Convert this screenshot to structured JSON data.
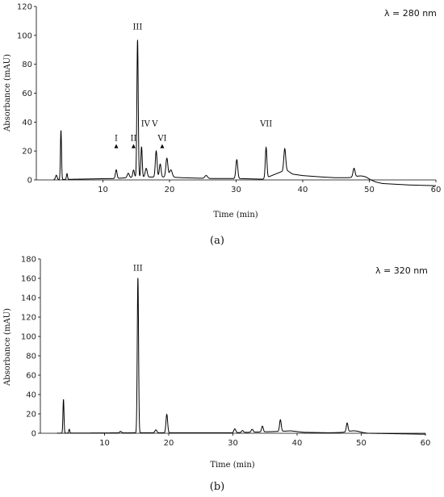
{
  "chart_data": [
    {
      "type": "line",
      "panel": "a",
      "caption": "(a)",
      "wavelength_label": "λ = 280 nm",
      "xlabel": "Time (min)",
      "ylabel": "Absorbance (mAU)",
      "xlim": [
        0,
        60
      ],
      "ylim": [
        0,
        120
      ],
      "xticks": [
        10,
        20,
        30,
        40,
        50,
        60
      ],
      "yticks": [
        0,
        20,
        40,
        60,
        80,
        100,
        120
      ],
      "grid": false,
      "peaks": [
        {
          "t": 3.0,
          "h": 3,
          "w": 0.12
        },
        {
          "t": 3.7,
          "h": 34,
          "w": 0.08
        },
        {
          "t": 4.6,
          "h": 4,
          "w": 0.08
        },
        {
          "t": 12.0,
          "h": 6,
          "w": 0.12
        },
        {
          "t": 13.8,
          "h": 3,
          "w": 0.15
        },
        {
          "t": 14.6,
          "h": 5,
          "w": 0.12
        },
        {
          "t": 15.2,
          "h": 95,
          "w": 0.1
        },
        {
          "t": 15.8,
          "h": 21,
          "w": 0.1
        },
        {
          "t": 16.5,
          "h": 6,
          "w": 0.15
        },
        {
          "t": 18.0,
          "h": 18,
          "w": 0.13
        },
        {
          "t": 18.6,
          "h": 9,
          "w": 0.13
        },
        {
          "t": 19.6,
          "h": 13,
          "w": 0.15
        },
        {
          "t": 20.2,
          "h": 5,
          "w": 0.2
        },
        {
          "t": 25.5,
          "h": 2,
          "w": 0.2
        },
        {
          "t": 30.1,
          "h": 13,
          "w": 0.14
        },
        {
          "t": 34.5,
          "h": 21,
          "w": 0.12
        },
        {
          "t": 37.3,
          "h": 15,
          "w": 0.14
        },
        {
          "t": 47.7,
          "h": 6,
          "w": 0.15
        }
      ],
      "baseline_points": [
        [
          0,
          0
        ],
        [
          12,
          1
        ],
        [
          15,
          2
        ],
        [
          20,
          2
        ],
        [
          22,
          1.5
        ],
        [
          26,
          1
        ],
        [
          30,
          1
        ],
        [
          34,
          0.5
        ],
        [
          37.5,
          7
        ],
        [
          38.5,
          4
        ],
        [
          40,
          3
        ],
        [
          43,
          2
        ],
        [
          45,
          1.5
        ],
        [
          48,
          1.5
        ],
        [
          49.5,
          1
        ],
        [
          51,
          -1.5
        ],
        [
          52,
          -2.5
        ],
        [
          56,
          -3.5
        ],
        [
          60,
          -4
        ]
      ],
      "bump": {
        "t": 48.8,
        "h": 1.5,
        "w": 0.8
      },
      "annotations": [
        {
          "text": "I",
          "x": 12.0,
          "y": 27,
          "arrow": true
        },
        {
          "text": "II",
          "x": 14.6,
          "y": 27,
          "arrow": true
        },
        {
          "text": "III",
          "x": 15.2,
          "y": 104,
          "arrow": false
        },
        {
          "text": "IV",
          "x": 16.4,
          "y": 37,
          "arrow": false
        },
        {
          "text": "V",
          "x": 17.8,
          "y": 37,
          "arrow": false
        },
        {
          "text": "VI",
          "x": 18.9,
          "y": 27,
          "arrow": true
        },
        {
          "text": "VII",
          "x": 34.5,
          "y": 37,
          "arrow": false
        }
      ]
    },
    {
      "type": "line",
      "panel": "b",
      "caption": "(b)",
      "wavelength_label": "λ = 320 nm",
      "xlabel": "Time (min)",
      "ylabel": "Absorbance (mAU)",
      "xlim": [
        0,
        60
      ],
      "ylim": [
        0,
        180
      ],
      "xticks": [
        10,
        20,
        30,
        40,
        50,
        60
      ],
      "yticks": [
        0,
        20,
        40,
        60,
        80,
        100,
        120,
        140,
        160,
        180
      ],
      "grid": false,
      "peaks": [
        {
          "t": 3.6,
          "h": 35,
          "w": 0.08
        },
        {
          "t": 4.5,
          "h": 4,
          "w": 0.08
        },
        {
          "t": 12.5,
          "h": 1.5,
          "w": 0.15
        },
        {
          "t": 15.2,
          "h": 160,
          "w": 0.1
        },
        {
          "t": 18.0,
          "h": 3,
          "w": 0.15
        },
        {
          "t": 19.7,
          "h": 19,
          "w": 0.13
        },
        {
          "t": 30.3,
          "h": 4,
          "w": 0.15
        },
        {
          "t": 31.5,
          "h": 2,
          "w": 0.15
        },
        {
          "t": 33.0,
          "h": 3,
          "w": 0.15
        },
        {
          "t": 34.6,
          "h": 6,
          "w": 0.13
        },
        {
          "t": 37.4,
          "h": 12,
          "w": 0.13
        },
        {
          "t": 47.8,
          "h": 9,
          "w": 0.13
        }
      ],
      "baseline_points": [
        [
          0,
          0
        ],
        [
          15,
          0.5
        ],
        [
          30,
          0.5
        ],
        [
          37.5,
          2
        ],
        [
          39,
          2.5
        ],
        [
          41,
          1
        ],
        [
          45,
          0.5
        ],
        [
          48,
          1
        ],
        [
          49.5,
          1
        ],
        [
          51,
          0
        ],
        [
          60,
          -1
        ]
      ],
      "bump": {
        "t": 48.8,
        "h": 1.5,
        "w": 0.8
      },
      "annotations": [
        {
          "text": "III",
          "x": 15.2,
          "y": 168,
          "arrow": false
        }
      ]
    }
  ]
}
